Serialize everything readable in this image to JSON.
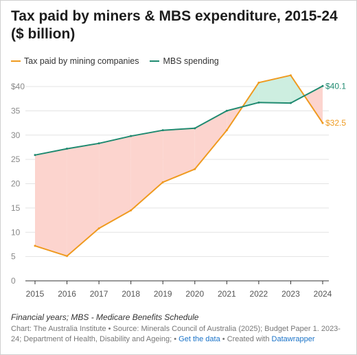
{
  "header": {
    "title": "Tax paid by miners & MBS expenditure, 2015-24 ($ billion)"
  },
  "legend": [
    {
      "label": "Tax paid by mining companies",
      "color": "#ef9a1f"
    },
    {
      "label": "MBS spending",
      "color": "#1f8a70"
    }
  ],
  "footer": {
    "notes": "Financial years; MBS - Medicare Benefits Schedule",
    "source": "Chart: The Australia Institute • Source: Minerals Council of Australia (2025); Budget Paper 1. 2023-24; Department of Health, Disability and Ageing; •",
    "get_data": "Get the data",
    "created_with": "• Created with",
    "datawrapper": "Datawrapper"
  },
  "chart_data": {
    "type": "line",
    "title": "Tax paid by miners & MBS expenditure, 2015-24 ($ billion)",
    "x": [
      2015,
      2016,
      2017,
      2018,
      2019,
      2020,
      2021,
      2022,
      2023,
      2024
    ],
    "series": [
      {
        "name": "Tax paid by mining companies",
        "color": "#ef9a1f",
        "values": [
          7.2,
          5.1,
          10.8,
          14.5,
          20.3,
          23.0,
          31.0,
          40.8,
          42.3,
          32.5
        ],
        "end_label": "$32.5"
      },
      {
        "name": "MBS spending",
        "color": "#1f8a70",
        "values": [
          25.9,
          27.2,
          28.3,
          29.8,
          31.0,
          31.4,
          35.0,
          36.7,
          36.6,
          40.1
        ],
        "end_label": "$40.1"
      }
    ],
    "y_ticks": [
      "0",
      "5",
      "10",
      "15",
      "20",
      "25",
      "30",
      "35",
      "$40"
    ],
    "ylim": [
      0,
      40
    ],
    "xlabel": "",
    "ylabel": "",
    "grid": true,
    "fill_colors": {
      "mbs_above": "#fcd4ce",
      "tax_above": "#cdeee0"
    }
  }
}
